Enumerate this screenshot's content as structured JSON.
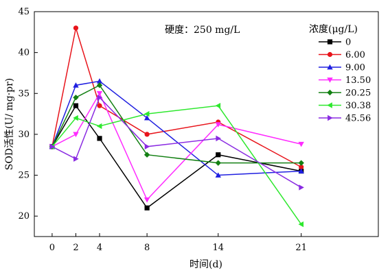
{
  "chart_data": {
    "type": "line",
    "x": [
      0,
      2,
      4,
      8,
      14,
      21
    ],
    "xticks": [
      "0",
      "2",
      "4",
      "8",
      "14",
      "21"
    ],
    "xlim": [
      -1.5,
      27.5
    ],
    "ylim": [
      17.5,
      45
    ],
    "yticks": [
      20,
      25,
      30,
      35,
      40,
      45
    ],
    "xlabel": "时间(d)",
    "ylabel": "SOD活性(U/ mg·pr)",
    "annotation": "硬度：250 mg/L",
    "legend_title": "浓度(μg/L)",
    "legend_position": "top-right",
    "grid": false,
    "series": [
      {
        "name": "0",
        "color": "#000000",
        "marker": "square",
        "values": [
          28.5,
          33.5,
          29.5,
          21.0,
          27.5,
          25.5
        ]
      },
      {
        "name": "6.00",
        "color": "#e8141b",
        "marker": "circle",
        "values": [
          28.5,
          43.0,
          33.5,
          30.0,
          31.5,
          26.0
        ]
      },
      {
        "name": "9.00",
        "color": "#1f1fe0",
        "marker": "triangle-up",
        "values": [
          28.5,
          36.0,
          36.5,
          32.0,
          25.0,
          25.5
        ]
      },
      {
        "name": "13.50",
        "color": "#ff2bff",
        "marker": "triangle-down",
        "values": [
          28.5,
          30.0,
          35.0,
          22.0,
          31.2,
          28.8
        ]
      },
      {
        "name": "20.25",
        "color": "#138013",
        "marker": "diamond",
        "values": [
          28.5,
          34.5,
          36.0,
          27.5,
          26.5,
          26.5
        ]
      },
      {
        "name": "30.38",
        "color": "#2de82d",
        "marker": "triangle-left",
        "values": [
          28.5,
          32.0,
          31.0,
          32.5,
          33.5,
          19.0
        ]
      },
      {
        "name": "45.56",
        "color": "#8a2be2",
        "marker": "triangle-right",
        "values": [
          28.5,
          27.0,
          34.5,
          28.5,
          29.5,
          23.5
        ]
      }
    ]
  }
}
